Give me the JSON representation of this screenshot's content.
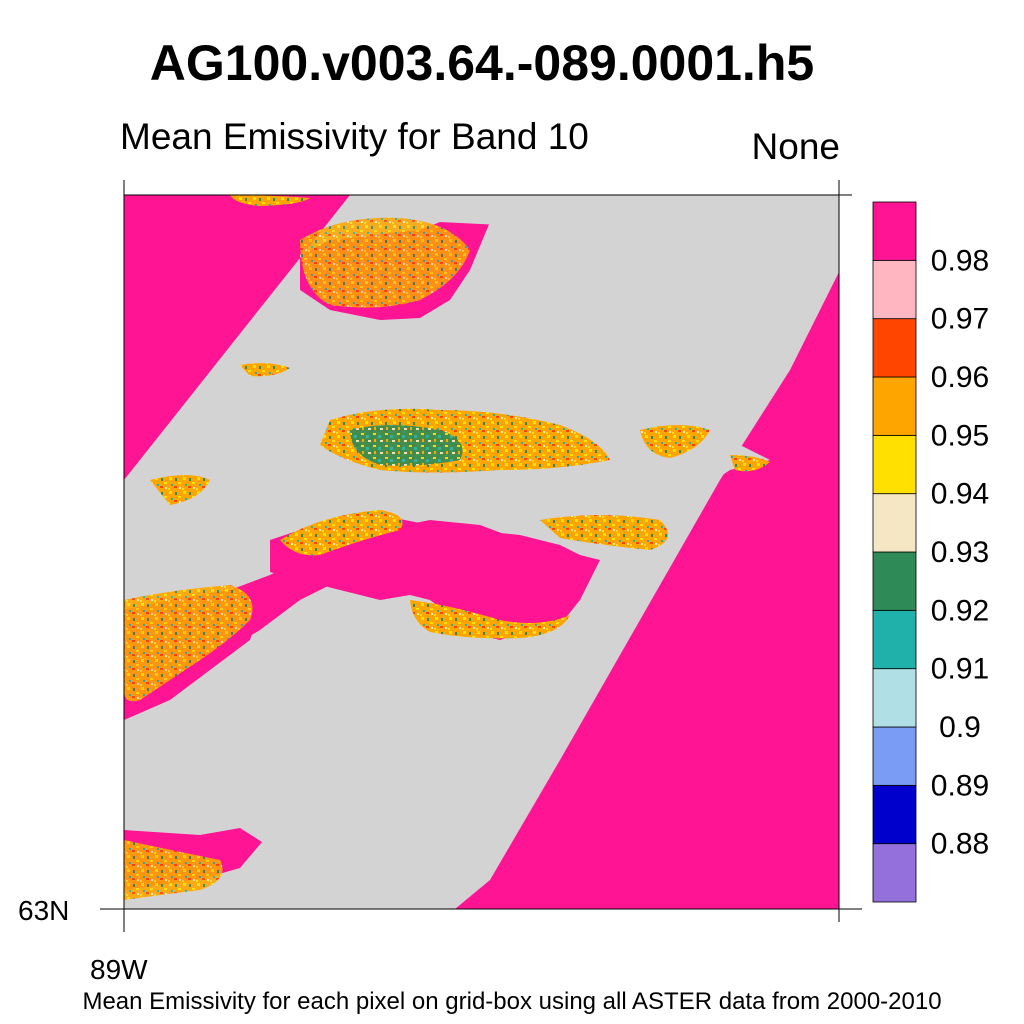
{
  "title": "AG100.v003.64.-089.0001.h5",
  "subtitle": "Mean Emissivity for Band 10",
  "units": "None",
  "footer": "Mean Emissivity for each pixel on grid-box using all ASTER data from 2000-2010",
  "axes": {
    "lat_label": "63N",
    "lon_label": "89W"
  },
  "colorbar": {
    "colors": [
      "#9370DB",
      "#0000CD",
      "#7B9CF5",
      "#B0DFE6",
      "#20B2AA",
      "#2E8B57",
      "#F5E6C4",
      "#FFE000",
      "#FFA500",
      "#FF4500",
      "#FFB6C1",
      "#FF1493"
    ],
    "labels": [
      "0.88",
      "0.89",
      "0.9",
      "0.91",
      "0.92",
      "0.93",
      "0.94",
      "0.95",
      "0.96",
      "0.97",
      "0.98"
    ]
  },
  "map_colors": {
    "no_data": "#D3D3D3",
    "high": "#FF1493"
  }
}
